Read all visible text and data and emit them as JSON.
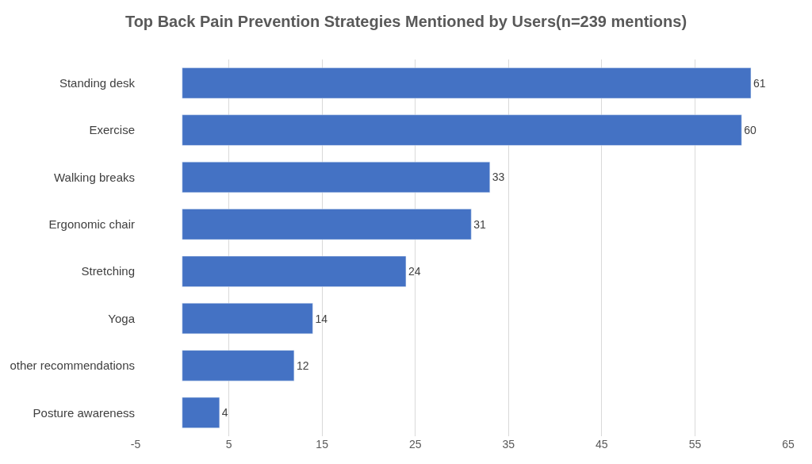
{
  "chart_data": {
    "type": "bar",
    "orientation": "horizontal",
    "title": "Top Back Pain Prevention Strategies Mentioned by Users(n=239 mentions)",
    "categories": [
      "Standing desk",
      "Exercise",
      "Walking breaks",
      "Ergonomic chair",
      "Stretching",
      "Yoga",
      "other recommendations",
      "Posture awareness"
    ],
    "values": [
      61,
      60,
      33,
      31,
      24,
      14,
      12,
      4
    ],
    "color": "#4472c4",
    "xlim": [
      -5,
      65
    ],
    "xticks": [
      -5,
      5,
      15,
      25,
      35,
      45,
      55,
      65
    ],
    "grid": "x",
    "data_labels": true
  }
}
